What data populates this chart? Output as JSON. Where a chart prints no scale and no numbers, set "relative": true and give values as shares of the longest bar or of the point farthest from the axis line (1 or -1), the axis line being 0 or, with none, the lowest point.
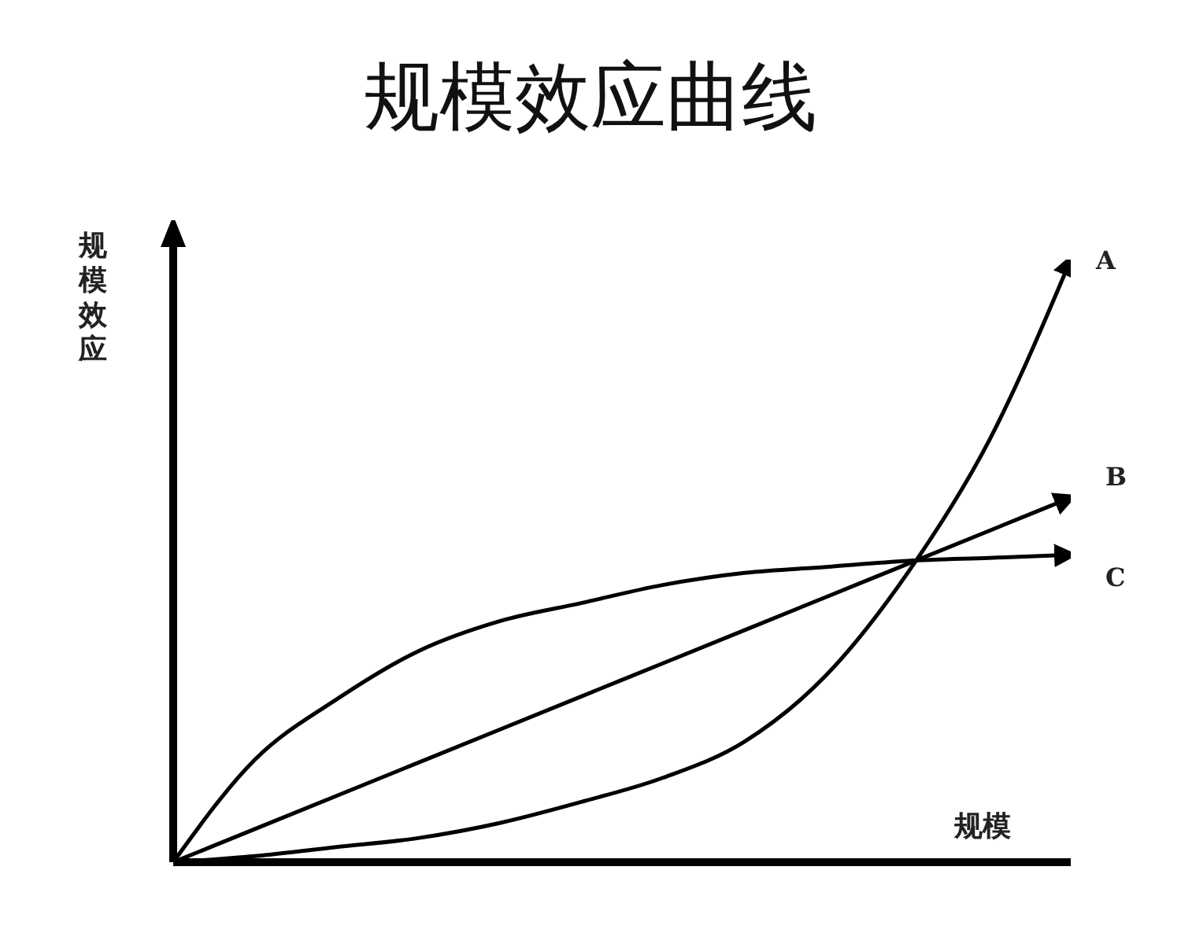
{
  "chart_data": {
    "type": "line",
    "title": "规模效应曲线",
    "xlabel": "规模",
    "ylabel": "规模效应",
    "relative": true,
    "grid": false,
    "legend": false,
    "marker": "none",
    "line_style": "solid",
    "categories": [
      null,
      null,
      null,
      null,
      null,
      null,
      null,
      null,
      null,
      null,
      null,
      null
    ],
    "series": [
      {
        "name": "A",
        "color": "#000000",
        "values": [
          0,
          0.01,
          0.025,
          0.04,
          0.065,
          0.1,
          0.14,
          0.2,
          0.31,
          0.48,
          0.7,
          1
        ]
      },
      {
        "name": "B",
        "color": "#000000",
        "values": [
          0,
          0.055,
          0.11,
          0.165,
          0.22,
          0.275,
          0.33,
          0.385,
          0.44,
          0.495,
          0.55,
          0.605
        ]
      },
      {
        "name": "C",
        "color": "#000000",
        "values": [
          0,
          0.17,
          0.27,
          0.35,
          0.4,
          0.43,
          0.46,
          0.48,
          0.49,
          0.5,
          0.505,
          0.51
        ]
      }
    ]
  }
}
